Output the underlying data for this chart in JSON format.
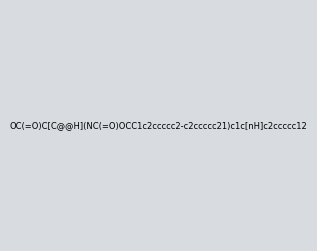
{
  "smiles": "OC(=O)C[C@@H](NC(=O)OCC1c2ccccc2-c2ccccc21)c1c[nH]c2ccccc12",
  "image_size": 300,
  "background_color": "#d8dce0",
  "title": ""
}
